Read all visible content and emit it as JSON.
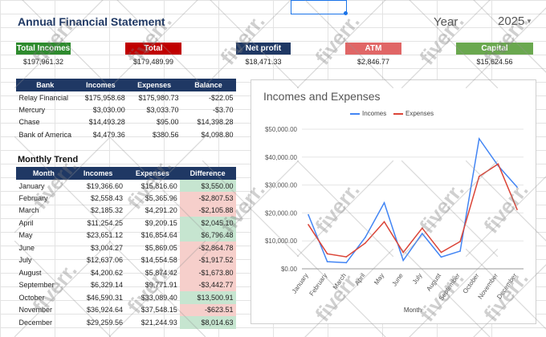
{
  "title": "Annual Financial Statement",
  "year": {
    "label": "Year",
    "value": "2025"
  },
  "kpis": [
    {
      "label": "Total Incomes",
      "value": "$197,961.32",
      "color": "#2e8b2e"
    },
    {
      "label": "Total Expenses",
      "value": "$179,489.99",
      "color": "#c00000"
    },
    {
      "label": "Net profit",
      "value": "$18,471.33",
      "color": "#1f3864"
    },
    {
      "label": "ATM",
      "value": "$2,846.77",
      "color": "#e06666"
    },
    {
      "label": "Capital Contribution",
      "value": "$15,624.56",
      "color": "#6aa84f"
    }
  ],
  "bank_table": {
    "headers": [
      "Bank",
      "Incomes",
      "Expenses",
      "Balance"
    ],
    "rows": [
      [
        "Relay Financial",
        "$175,958.68",
        "$175,980.73",
        "-$22.05"
      ],
      [
        "Mercury",
        "$3,030.00",
        "$3,033.70",
        "-$3.70"
      ],
      [
        "Chase",
        "$14,493.28",
        "$95.00",
        "$14,398.28"
      ],
      [
        "Bank of America",
        "$4,479.36",
        "$380.56",
        "$4,098.80"
      ]
    ]
  },
  "monthly_section_title": "Monthly Trend",
  "monthly_table": {
    "headers": [
      "Month",
      "Incomes",
      "Expenses",
      "Difference"
    ],
    "rows": [
      [
        "January",
        "$19,366.60",
        "$15,816.60",
        "$3,550.00"
      ],
      [
        "February",
        "$2,558.43",
        "$5,365.96",
        "-$2,807.53"
      ],
      [
        "March",
        "$2,185.32",
        "$4,291.20",
        "-$2,105.88"
      ],
      [
        "April",
        "$11,254.25",
        "$9,209.15",
        "$2,045.10"
      ],
      [
        "May",
        "$23,651.12",
        "$16,854.64",
        "$6,796.48"
      ],
      [
        "June",
        "$3,004.27",
        "$5,869.05",
        "-$2,864.78"
      ],
      [
        "July",
        "$12,637.06",
        "$14,554.58",
        "-$1,917.52"
      ],
      [
        "August",
        "$4,200.62",
        "$5,874.42",
        "-$1,673.80"
      ],
      [
        "September",
        "$6,329.14",
        "$9,771.91",
        "-$3,442.77"
      ],
      [
        "October",
        "$46,590.31",
        "$33,089.40",
        "$13,500.91"
      ],
      [
        "November",
        "$36,924.64",
        "$37,548.15",
        "-$623.51"
      ],
      [
        "December",
        "$29,259.56",
        "$21,244.93",
        "$8,014.63"
      ]
    ]
  },
  "colors": {
    "header_navy": "#1f3864",
    "positive": "#c6e5d0",
    "negative": "#f6cfcb",
    "incomes_line": "#4285f4",
    "expenses_line": "#db4437"
  },
  "watermark_text": "fiverr.",
  "chart_data": {
    "type": "line",
    "title": "Incomes and Expenses",
    "xlabel": "Month",
    "ylabel": "",
    "categories": [
      "January",
      "February",
      "March",
      "April",
      "May",
      "June",
      "July",
      "August",
      "September",
      "October",
      "November",
      "December"
    ],
    "series": [
      {
        "name": "Incomes",
        "color": "#4285f4",
        "values": [
          19366.6,
          2558.43,
          2185.32,
          11254.25,
          23651.12,
          3004.27,
          12637.06,
          4200.62,
          6329.14,
          46590.31,
          36924.64,
          29259.56
        ]
      },
      {
        "name": "Expenses",
        "color": "#db4437",
        "values": [
          15816.6,
          5365.96,
          4291.2,
          9209.15,
          16854.64,
          5869.05,
          14554.58,
          5874.42,
          9771.91,
          33089.4,
          37548.15,
          21244.93
        ]
      }
    ],
    "yticks": [
      "$0.00",
      "$10,000.00",
      "$20,000.00",
      "$30,000.00",
      "$40,000.00",
      "$50,000.00"
    ],
    "ylim": [
      0,
      50000
    ],
    "legend": "top"
  }
}
